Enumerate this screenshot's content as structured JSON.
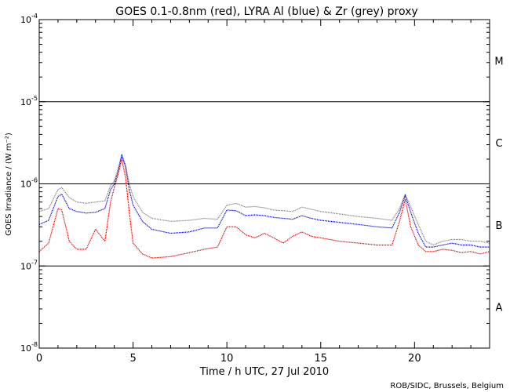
{
  "chart_data": {
    "type": "line",
    "title": "GOES 0.1-0.8nm (red), LYRA Al (blue) & Zr (grey) proxy",
    "xlabel": "Time / h UTC, 27 Jul 2010",
    "ylabel": "GOES Irradiance / (W m⁻²)",
    "credit": "ROB/SIDC, Brussels, Belgium",
    "xlim": [
      0,
      24
    ],
    "ylim_log10": [
      -8,
      -4
    ],
    "x_ticks": [
      0,
      5,
      10,
      15,
      20
    ],
    "x_tick_labels": [
      "0",
      "5",
      "10",
      "15",
      "20"
    ],
    "y_ticks_log10": [
      -8,
      -7,
      -6,
      -5,
      -4
    ],
    "y_tick_labels": [
      {
        "base": "10",
        "exp": "-8"
      },
      {
        "base": "10",
        "exp": "-7"
      },
      {
        "base": "10",
        "exp": "-6"
      },
      {
        "base": "10",
        "exp": "-5"
      },
      {
        "base": "10",
        "exp": "-4"
      }
    ],
    "flare_class_lines_log10": [
      -7,
      -6,
      -5
    ],
    "flare_classes": [
      {
        "label": "A",
        "center_log10": -7.5
      },
      {
        "label": "B",
        "center_log10": -6.5
      },
      {
        "label": "C",
        "center_log10": -5.5
      },
      {
        "label": "M",
        "center_log10": -4.5
      }
    ],
    "series": [
      {
        "name": "LYRA Zr proxy",
        "color": "#808080",
        "x": [
          0,
          0.5,
          1.0,
          1.2,
          1.6,
          2.0,
          2.5,
          3.0,
          3.5,
          3.8,
          4.0,
          4.2,
          4.4,
          4.6,
          4.8,
          5.0,
          5.5,
          6.0,
          7.0,
          8.0,
          8.8,
          9.5,
          10.0,
          10.5,
          11.0,
          11.5,
          12.0,
          12.5,
          13.0,
          13.5,
          14.0,
          14.5,
          15.0,
          16.0,
          17.0,
          18.0,
          18.8,
          19.2,
          19.5,
          19.8,
          20.2,
          20.6,
          21.0,
          21.5,
          22.0,
          22.5,
          23.0,
          23.5,
          24.0
        ],
        "y": [
          4.6e-07,
          5e-07,
          8.5e-07,
          9e-07,
          6.8e-07,
          6e-07,
          5.8e-07,
          6e-07,
          6.2e-07,
          9.5e-07,
          1.1e-06,
          1.5e-06,
          2.3e-06,
          1.7e-06,
          1e-06,
          7e-07,
          4.5e-07,
          3.8e-07,
          3.5e-07,
          3.6e-07,
          3.8e-07,
          3.7e-07,
          5.5e-07,
          5.8e-07,
          5.2e-07,
          5.3e-07,
          5.1e-07,
          4.8e-07,
          4.7e-07,
          4.6e-07,
          5.2e-07,
          4.9e-07,
          4.6e-07,
          4.3e-07,
          4e-07,
          3.8e-07,
          3.6e-07,
          5e-07,
          7.5e-07,
          5.2e-07,
          3.2e-07,
          2e-07,
          1.8e-07,
          2e-07,
          2.1e-07,
          2.1e-07,
          2e-07,
          2e-07,
          1.9e-07
        ]
      },
      {
        "name": "LYRA Al proxy",
        "color": "#0000cc",
        "x": [
          0,
          0.5,
          1.0,
          1.2,
          1.6,
          2.0,
          2.5,
          3.0,
          3.5,
          3.8,
          4.0,
          4.2,
          4.4,
          4.6,
          4.8,
          5.0,
          5.5,
          6.0,
          7.0,
          8.0,
          8.8,
          9.5,
          10.0,
          10.5,
          11.0,
          11.5,
          12.0,
          12.5,
          13.0,
          13.5,
          14.0,
          14.5,
          15.0,
          16.0,
          17.0,
          18.0,
          18.8,
          19.2,
          19.5,
          19.8,
          20.2,
          20.6,
          21.0,
          21.5,
          22.0,
          22.5,
          23.0,
          23.5,
          24.0
        ],
        "y": [
          3.2e-07,
          3.6e-07,
          7e-07,
          7.5e-07,
          5e-07,
          4.6e-07,
          4.4e-07,
          4.5e-07,
          5e-07,
          8.5e-07,
          1e-06,
          1.4e-06,
          2.2e-06,
          1.6e-06,
          8.5e-07,
          5.5e-07,
          3.5e-07,
          2.8e-07,
          2.5e-07,
          2.6e-07,
          2.9e-07,
          2.9e-07,
          4.8e-07,
          4.7e-07,
          4.1e-07,
          4.2e-07,
          4.1e-07,
          3.9e-07,
          3.8e-07,
          3.7e-07,
          4.1e-07,
          3.8e-07,
          3.6e-07,
          3.4e-07,
          3.2e-07,
          3e-07,
          2.9e-07,
          4.5e-07,
          7.2e-07,
          4.5e-07,
          2.5e-07,
          1.7e-07,
          1.7e-07,
          1.8e-07,
          1.9e-07,
          1.8e-07,
          1.8e-07,
          1.7e-07,
          1.7e-07
        ]
      },
      {
        "name": "GOES 0.1-0.8nm",
        "color": "#dd0000",
        "x": [
          0,
          0.5,
          1.0,
          1.2,
          1.6,
          2.0,
          2.5,
          3.0,
          3.5,
          3.8,
          4.0,
          4.2,
          4.4,
          4.6,
          4.8,
          5.0,
          5.5,
          6.0,
          7.0,
          8.0,
          8.8,
          9.5,
          10.0,
          10.5,
          11.0,
          11.5,
          12.0,
          12.5,
          13.0,
          13.5,
          14.0,
          14.5,
          15.0,
          16.0,
          17.0,
          18.0,
          18.8,
          19.2,
          19.5,
          19.8,
          20.2,
          20.6,
          21.0,
          21.5,
          22.0,
          22.5,
          23.0,
          23.5,
          24.0
        ],
        "y": [
          1.5e-07,
          1.9e-07,
          5e-07,
          4.8e-07,
          2e-07,
          1.6e-07,
          1.6e-07,
          2.8e-07,
          2e-07,
          6e-07,
          9e-07,
          1.3e-06,
          2e-06,
          1.2e-06,
          4.5e-07,
          1.9e-07,
          1.4e-07,
          1.25e-07,
          1.3e-07,
          1.45e-07,
          1.6e-07,
          1.7e-07,
          3e-07,
          3e-07,
          2.4e-07,
          2.2e-07,
          2.5e-07,
          2.2e-07,
          1.9e-07,
          2.3e-07,
          2.6e-07,
          2.3e-07,
          2.2e-07,
          2e-07,
          1.9e-07,
          1.8e-07,
          1.8e-07,
          3.5e-07,
          6.5e-07,
          3e-07,
          1.8e-07,
          1.5e-07,
          1.5e-07,
          1.6e-07,
          1.55e-07,
          1.45e-07,
          1.5e-07,
          1.4e-07,
          1.5e-07
        ]
      }
    ]
  }
}
